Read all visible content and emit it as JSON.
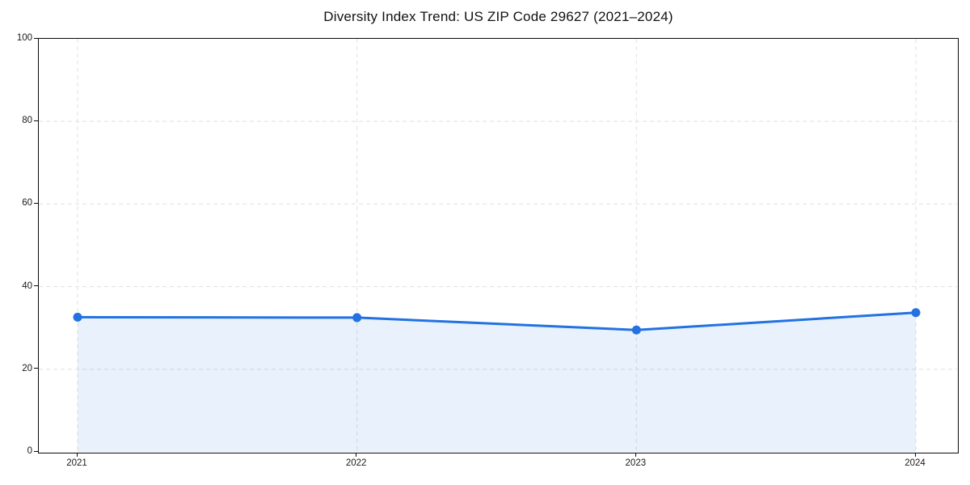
{
  "chart_data": {
    "type": "area",
    "title": "Diversity Index Trend: US ZIP Code 29627 (2021–2024)",
    "x": [
      2021,
      2022,
      2023,
      2024
    ],
    "x_tick_labels": [
      "2021",
      "2022",
      "2023",
      "2024"
    ],
    "series": [
      {
        "name": "Diversity Index",
        "values": [
          32.6,
          32.5,
          29.5,
          33.7
        ]
      }
    ],
    "xlabel": "",
    "ylabel": "",
    "ylim": [
      0,
      100
    ],
    "yticks": [
      0,
      20,
      40,
      60,
      80,
      100
    ],
    "grid": true,
    "grid_style": "dashed",
    "legend": false,
    "legend_position": "none",
    "line_color": "#2272E2",
    "marker_color": "#2272E2",
    "fill_color": "rgba(34,114,226,0.10)",
    "grid_color": "#e4e4e4",
    "spine_color": "#0a0a0a"
  }
}
